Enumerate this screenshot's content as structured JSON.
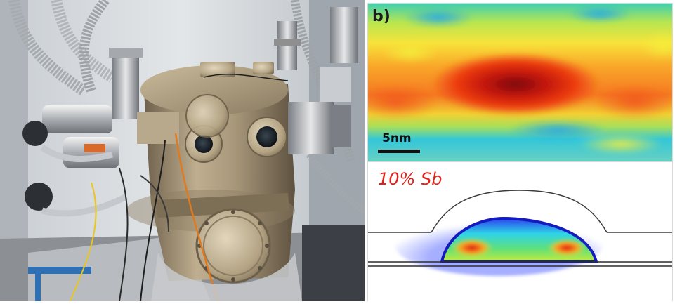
{
  "panel_b": {
    "label": "b)",
    "scale_bar_label": "5nm"
  },
  "panel_c": {
    "composition_label": "10% Sb"
  }
}
